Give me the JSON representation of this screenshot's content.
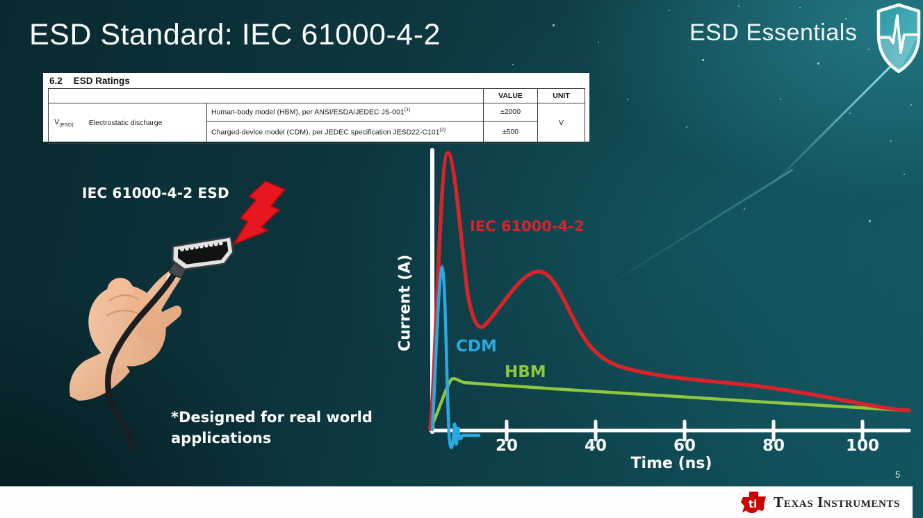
{
  "slide": {
    "title": "ESD Standard: IEC 61000-4-2",
    "series_label": "ESD Essentials",
    "esd_illustration_label": "IEC 61000-4-2 ESD",
    "footnote": "*Designed for real world\napplications",
    "page_number": "5",
    "footer_brand": "Texas Instruments"
  },
  "colors": {
    "background_dark": "#0a2b31",
    "background_light": "#12555f",
    "iec_red": "#d8232a",
    "cdm_blue": "#2aa9e0",
    "hbm_green": "#8dc63f",
    "bolt_red": "#e8161f",
    "ti_logo_red": "#cc0000"
  },
  "ratings_table": {
    "section_number": "6.2",
    "section_title": "ESD Ratings",
    "col_value": "VALUE",
    "col_unit": "UNIT",
    "symbol_base": "V",
    "symbol_sub": "(ESD)",
    "parameter": "Electrostatic discharge",
    "rows": [
      {
        "desc": "Human-body model (HBM), per ANSI/ESDA/JEDEC JS-001",
        "sup": "(1)",
        "value": "±2000"
      },
      {
        "desc": "Charged-device model (CDM), per JEDEC specification JESD22-C101",
        "sup": "(2)",
        "value": "±500"
      }
    ],
    "unit": "V"
  },
  "chart_data": {
    "type": "line",
    "title": "",
    "xlabel": "Time (ns)",
    "ylabel": "Current (A)",
    "x_ticks": [
      "20",
      "40",
      "60",
      "80",
      "100"
    ],
    "xlim": [
      0,
      110
    ],
    "grid": false,
    "legend_position": "inline-annotations",
    "y_axis_note": "y axis unlabeled; values below are relative amplitude (IEC peak = 10)",
    "series": [
      {
        "name": "IEC 61000-4-2",
        "color": "#d8232a",
        "x": [
          0,
          1,
          4,
          7,
          10,
          15,
          22,
          28,
          34,
          40,
          46,
          58,
          70,
          85,
          100,
          110
        ],
        "y": [
          0,
          2.5,
          10,
          6.5,
          3.8,
          3.6,
          4.6,
          5.7,
          5.2,
          3.9,
          3.1,
          2.7,
          2.3,
          1.8,
          1.2,
          0.85
        ]
      },
      {
        "name": "CDM",
        "color": "#2aa9e0",
        "x": [
          0,
          1,
          2,
          3,
          4,
          4.6,
          5.2,
          5.8,
          6.4,
          7,
          8,
          10.5
        ],
        "y": [
          0,
          2.0,
          5.9,
          2.0,
          -0.8,
          0.35,
          -0.55,
          0.1,
          -0.35,
          -0.2,
          -0.2,
          -0.2
        ]
      },
      {
        "name": "HBM",
        "color": "#8dc63f",
        "x": [
          0,
          2,
          4.7,
          7,
          20,
          40,
          60,
          80,
          100,
          107
        ],
        "y": [
          0,
          0.8,
          1.85,
          1.75,
          1.6,
          1.38,
          1.18,
          0.98,
          0.78,
          0.72
        ]
      }
    ]
  }
}
